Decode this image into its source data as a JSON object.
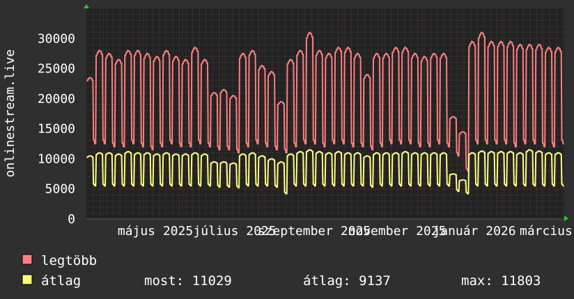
{
  "colors": {
    "background": "#2f2f2f",
    "plot_background": "#222222",
    "grid_minor": "#4a4a4a",
    "grid_major": "#6a3535",
    "max_series": "#ff7f7f",
    "avg_series": "#ffff80",
    "axis_arrow": "#22cc22"
  },
  "chart_data": {
    "type": "line",
    "ylabel": "onlinestream.live",
    "ylim": [
      0,
      35000
    ],
    "yticks": [
      "0",
      "5000",
      "10000",
      "15000",
      "20000",
      "25000",
      "30000"
    ],
    "ytick_values": [
      0,
      5000,
      10000,
      15000,
      20000,
      25000,
      30000
    ],
    "xtick_labels": [
      "május 2025",
      "július 2025",
      "szeptember 2025",
      "november 2025",
      "január 2026",
      "március"
    ],
    "grid": true,
    "legend_placement": "bottom-left",
    "resolution": "weekly peaks (weekday) and troughs (weekend)",
    "series": [
      {
        "name": "legtöbb",
        "weekday_peak": [
          23500,
          28000,
          27500,
          26500,
          28000,
          28000,
          27500,
          27000,
          28000,
          27000,
          26500,
          28500,
          26500,
          21000,
          21500,
          20500,
          27500,
          28000,
          25500,
          24500,
          19500,
          26500,
          28000,
          31000,
          28000,
          27500,
          28500,
          28500,
          27500,
          24000,
          27500,
          27500,
          28500,
          28500,
          27500,
          27000,
          27500,
          27500,
          17000,
          14500,
          29500,
          31000,
          29500,
          29500,
          29500,
          29000,
          29000,
          29000,
          28500,
          28500
        ],
        "weekend_low": [
          12500,
          12500,
          12000,
          12000,
          12500,
          12000,
          11500,
          12000,
          12500,
          12000,
          12000,
          12500,
          12000,
          11500,
          11500,
          11000,
          12000,
          12500,
          12000,
          11500,
          11000,
          12000,
          12500,
          12500,
          12000,
          12500,
          12500,
          12000,
          12000,
          11500,
          12000,
          12500,
          12500,
          12500,
          12000,
          12000,
          12500,
          12000,
          10500,
          8000,
          12500,
          12500,
          12500,
          12500,
          12000,
          12500,
          12500,
          12000,
          12000,
          12500
        ]
      },
      {
        "name": "átlag",
        "weekday_peak": [
          10500,
          11000,
          11000,
          10800,
          11200,
          11000,
          11000,
          10800,
          11000,
          10800,
          10800,
          11000,
          10800,
          9500,
          9500,
          9300,
          10800,
          11000,
          10500,
          10000,
          9500,
          10800,
          11200,
          11500,
          11200,
          11000,
          11200,
          11000,
          11000,
          10500,
          11000,
          11000,
          11000,
          11200,
          11000,
          11000,
          11000,
          11000,
          7500,
          6500,
          11000,
          11300,
          11200,
          11200,
          11200,
          11000,
          11500,
          11300,
          11000,
          11000
        ],
        "weekend_low": [
          5500,
          5500,
          5500,
          5500,
          5500,
          5500,
          5500,
          5500,
          5500,
          5500,
          5500,
          5500,
          5500,
          5300,
          5300,
          5200,
          5500,
          5500,
          5500,
          5300,
          4200,
          5500,
          5500,
          5500,
          5500,
          5500,
          5500,
          5500,
          5500,
          5300,
          5500,
          5500,
          5500,
          5500,
          5500,
          5500,
          5500,
          5500,
          4600,
          4200,
          5500,
          5500,
          5500,
          5500,
          5500,
          5500,
          5500,
          5500,
          5500,
          5500
        ]
      }
    ]
  },
  "legend": {
    "max_label": "legtöbb",
    "avg_label": "átlag",
    "stats": {
      "current": "most: 11029",
      "average": "átlag: 9137",
      "maximum": "max: 11803"
    }
  }
}
